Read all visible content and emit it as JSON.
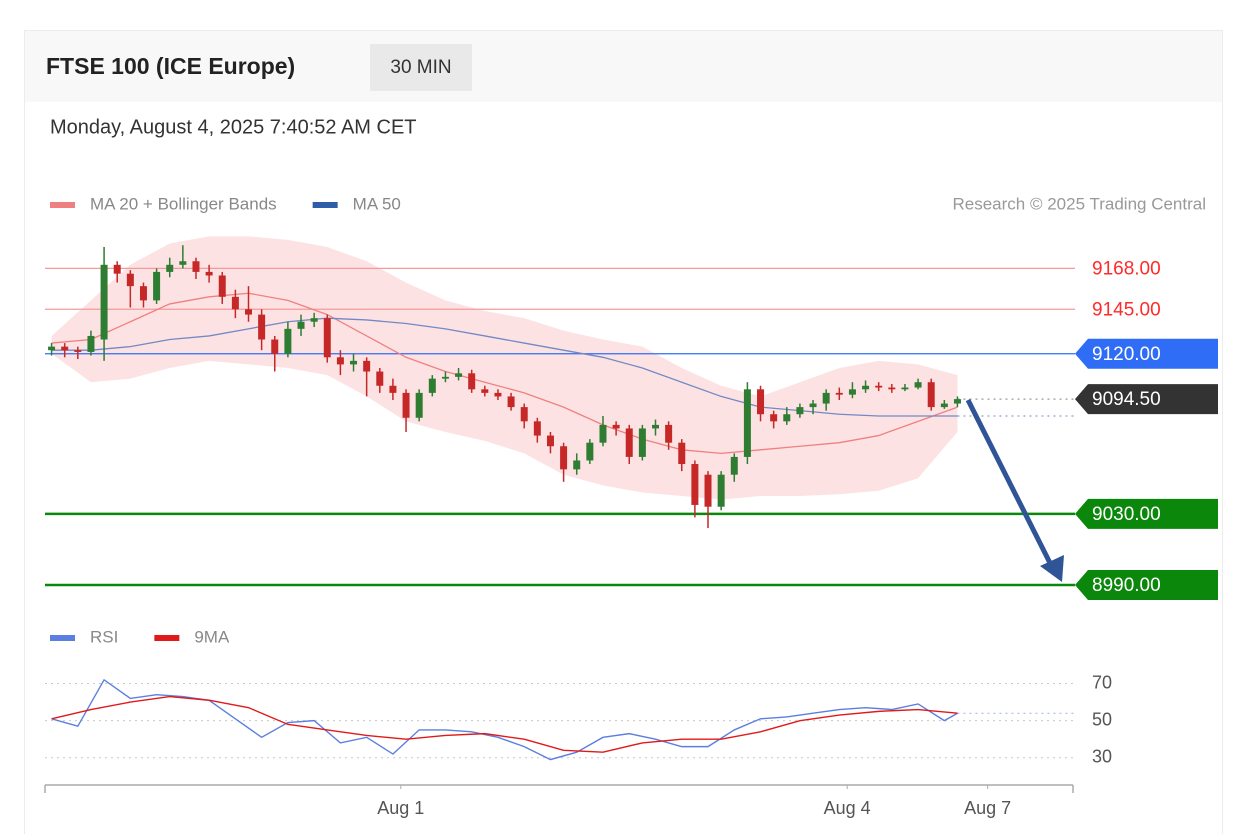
{
  "header": {
    "title": "FTSE 100 (ICE Europe)",
    "interval": "30 MIN",
    "timestamp": "Monday, August 4, 2025 7:40:52 AM CET"
  },
  "chart_data": [
    {
      "type": "candlestick",
      "credit": "Research © 2025 Trading Central",
      "xlim": [
        -0.5,
        77.8
      ],
      "ylim": [
        8981,
        9189
      ],
      "up_color": "#2e7d32",
      "down_color": "#c62828",
      "x": [
        0,
        1,
        2,
        3,
        4,
        5,
        6,
        7,
        8,
        9,
        10,
        11,
        12,
        13,
        14,
        15,
        16,
        17,
        18,
        19,
        20,
        21,
        22,
        23,
        24,
        25,
        26,
        27,
        28,
        29,
        30,
        31,
        32,
        33,
        34,
        35,
        36,
        37,
        38,
        39,
        40,
        41,
        42,
        43,
        44,
        45,
        46,
        47,
        48,
        49,
        50,
        51,
        52,
        53,
        54,
        55,
        56,
        57,
        58,
        59,
        60,
        61,
        62,
        63,
        64,
        65,
        66,
        67,
        68,
        69
      ],
      "ohlc": [
        [
          9122,
          9126,
          9119,
          9124
        ],
        [
          9124,
          9126,
          9118,
          9122
        ],
        [
          9122,
          9124,
          9117,
          9121
        ],
        [
          9121,
          9133,
          9119,
          9130
        ],
        [
          9128,
          9180,
          9116,
          9170
        ],
        [
          9170,
          9172,
          9160,
          9165
        ],
        [
          9165,
          9167,
          9146,
          9158
        ],
        [
          9158,
          9160,
          9146,
          9150
        ],
        [
          9150,
          9168,
          9148,
          9166
        ],
        [
          9166,
          9174,
          9163,
          9170
        ],
        [
          9170,
          9181,
          9168,
          9172
        ],
        [
          9172,
          9174,
          9162,
          9166
        ],
        [
          9166,
          9170,
          9160,
          9164
        ],
        [
          9164,
          9166,
          9148,
          9152
        ],
        [
          9152,
          9156,
          9140,
          9145
        ],
        [
          9145,
          9158,
          9138,
          9142
        ],
        [
          9142,
          9145,
          9122,
          9128
        ],
        [
          9128,
          9130,
          9110,
          9120
        ],
        [
          9120,
          9138,
          9118,
          9134
        ],
        [
          9134,
          9142,
          9130,
          9138
        ],
        [
          9138,
          9143,
          9135,
          9140
        ],
        [
          9140,
          9142,
          9115,
          9118
        ],
        [
          9118,
          9122,
          9108,
          9114
        ],
        [
          9114,
          9120,
          9110,
          9116
        ],
        [
          9116,
          9118,
          9096,
          9110
        ],
        [
          9110,
          9112,
          9098,
          9102
        ],
        [
          9102,
          9106,
          9094,
          9098
        ],
        [
          9098,
          9100,
          9076,
          9084
        ],
        [
          9084,
          9100,
          9082,
          9098
        ],
        [
          9098,
          9108,
          9096,
          9106
        ],
        [
          9106,
          9110,
          9104,
          9107
        ],
        [
          9107,
          9112,
          9105,
          9109
        ],
        [
          9109,
          9111,
          9098,
          9100
        ],
        [
          9100,
          9102,
          9096,
          9098
        ],
        [
          9098,
          9100,
          9094,
          9096
        ],
        [
          9096,
          9098,
          9088,
          9090
        ],
        [
          9090,
          9092,
          9078,
          9082
        ],
        [
          9082,
          9084,
          9070,
          9074
        ],
        [
          9074,
          9076,
          9064,
          9068
        ],
        [
          9068,
          9070,
          9048,
          9055
        ],
        [
          9055,
          9064,
          9052,
          9060
        ],
        [
          9060,
          9072,
          9058,
          9070
        ],
        [
          9070,
          9085,
          9068,
          9080
        ],
        [
          9080,
          9082,
          9074,
          9078
        ],
        [
          9078,
          9080,
          9058,
          9062
        ],
        [
          9062,
          9080,
          9060,
          9078
        ],
        [
          9078,
          9083,
          9074,
          9080
        ],
        [
          9080,
          9082,
          9066,
          9070
        ],
        [
          9070,
          9072,
          9054,
          9058
        ],
        [
          9058,
          9060,
          9028,
          9035
        ],
        [
          9052,
          9054,
          9022,
          9034
        ],
        [
          9034,
          9054,
          9032,
          9052
        ],
        [
          9052,
          9064,
          9048,
          9062
        ],
        [
          9062,
          9104,
          9058,
          9100
        ],
        [
          9100,
          9102,
          9082,
          9086
        ],
        [
          9086,
          9088,
          9078,
          9082
        ],
        [
          9082,
          9090,
          9080,
          9086
        ],
        [
          9086,
          9092,
          9084,
          9090
        ],
        [
          9090,
          9094,
          9086,
          9092
        ],
        [
          9092,
          9100,
          9088,
          9098
        ],
        [
          9098,
          9101,
          9094,
          9097
        ],
        [
          9097,
          9104,
          9095,
          9100
        ],
        [
          9100,
          9105,
          9098,
          9102
        ],
        [
          9102,
          9104,
          9099,
          9101
        ],
        [
          9101,
          9103,
          9098,
          9100
        ],
        [
          9100,
          9103,
          9099,
          9101
        ],
        [
          9101,
          9106,
          9100,
          9104
        ],
        [
          9104,
          9106,
          9088,
          9090
        ],
        [
          9090,
          9094,
          9089,
          9092
        ],
        [
          9092,
          9096,
          9090,
          9094.5
        ]
      ],
      "series": [
        {
          "name": "MA 20 + Bollinger Bands",
          "color": "#f08080",
          "band_color": "#fde2e4",
          "x": [
            0,
            3,
            6,
            9,
            12,
            15,
            18,
            21,
            24,
            27,
            30,
            33,
            36,
            39,
            42,
            45,
            48,
            51,
            54,
            57,
            60,
            63,
            66,
            69
          ],
          "values": [
            9126,
            9128,
            9138,
            9148,
            9152,
            9154,
            9150,
            9142,
            9130,
            9118,
            9110,
            9104,
            9098,
            9090,
            9080,
            9072,
            9066,
            9064,
            9066,
            9068,
            9070,
            9074,
            9082,
            9090
          ],
          "band_upper": [
            9130,
            9150,
            9170,
            9182,
            9186,
            9186,
            9184,
            9180,
            9172,
            9160,
            9150,
            9144,
            9140,
            9133,
            9128,
            9124,
            9112,
            9102,
            9096,
            9104,
            9112,
            9116,
            9114,
            9108
          ],
          "band_lower": [
            9120,
            9104,
            9106,
            9112,
            9116,
            9114,
            9112,
            9108,
            9096,
            9082,
            9076,
            9071,
            9064,
            9052,
            9046,
            9042,
            9040,
            9038,
            9040,
            9040,
            9041,
            9043,
            9050,
            9076
          ]
        },
        {
          "name": "MA 50",
          "color": "#2f5da8",
          "line_color": "#7189c4",
          "extend": true,
          "x": [
            0,
            3,
            6,
            9,
            12,
            15,
            18,
            21,
            24,
            27,
            30,
            33,
            36,
            39,
            42,
            45,
            48,
            51,
            54,
            57,
            60,
            63,
            66,
            69
          ],
          "values": [
            9122,
            9122,
            9124,
            9128,
            9130,
            9134,
            9138,
            9140,
            9139,
            9137,
            9134,
            9130,
            9126,
            9122,
            9118,
            9112,
            9104,
            9096,
            9090,
            9088,
            9086,
            9085,
            9085,
            9085
          ]
        }
      ],
      "levels": [
        {
          "value": 9168,
          "label": "9168.00",
          "kind": "resistance",
          "color": "#ff2a2a"
        },
        {
          "value": 9145,
          "label": "9145.00",
          "kind": "resistance",
          "color": "#ff2a2a"
        },
        {
          "value": 9120,
          "label": "9120.00",
          "kind": "pivot",
          "color": "#2f6df6"
        },
        {
          "value": 9094.5,
          "label": "9094.50",
          "kind": "last",
          "color": "#333333"
        },
        {
          "value": 9030,
          "label": "9030.00",
          "kind": "support",
          "color": "#0b870b"
        },
        {
          "value": 8990,
          "label": "8990.00",
          "kind": "support",
          "color": "#0b870b"
        }
      ]
    },
    {
      "type": "line",
      "xlim": [
        -0.5,
        77.8
      ],
      "ylim": [
        18,
        80
      ],
      "yticks": [
        30,
        50,
        70
      ],
      "xticks": [
        {
          "value": 26.6,
          "label": "Aug 1"
        },
        {
          "value": 60.6,
          "label": "Aug 4"
        },
        {
          "value": 71.3,
          "label": "Aug 7"
        }
      ],
      "series": [
        {
          "name": "RSI",
          "color": "#5b7fe0",
          "extend": true,
          "x": [
            0,
            2,
            4,
            6,
            8,
            10,
            12,
            14,
            16,
            18,
            20,
            22,
            24,
            26,
            28,
            30,
            32,
            34,
            36,
            38,
            40,
            42,
            44,
            46,
            48,
            50,
            52,
            54,
            56,
            58,
            60,
            62,
            64,
            66,
            68,
            69
          ],
          "values": [
            51,
            47,
            72,
            62,
            64,
            63,
            61,
            51,
            41,
            49,
            50,
            38,
            41,
            32,
            45,
            45,
            44,
            41,
            36,
            29,
            33,
            41,
            43,
            40,
            36,
            36,
            45,
            51,
            52,
            54,
            56,
            57,
            56,
            59,
            50,
            54
          ]
        },
        {
          "name": "9MA",
          "color": "#e01a1a",
          "x": [
            0,
            3,
            6,
            9,
            12,
            15,
            18,
            21,
            24,
            27,
            30,
            33,
            36,
            39,
            42,
            45,
            48,
            51,
            54,
            57,
            60,
            63,
            66,
            69
          ],
          "values": [
            51,
            56,
            60,
            63,
            61,
            57,
            48,
            45,
            42,
            40,
            42,
            43,
            40,
            34,
            33,
            38,
            40,
            40,
            44,
            50,
            53,
            55,
            56,
            54
          ]
        }
      ]
    }
  ]
}
